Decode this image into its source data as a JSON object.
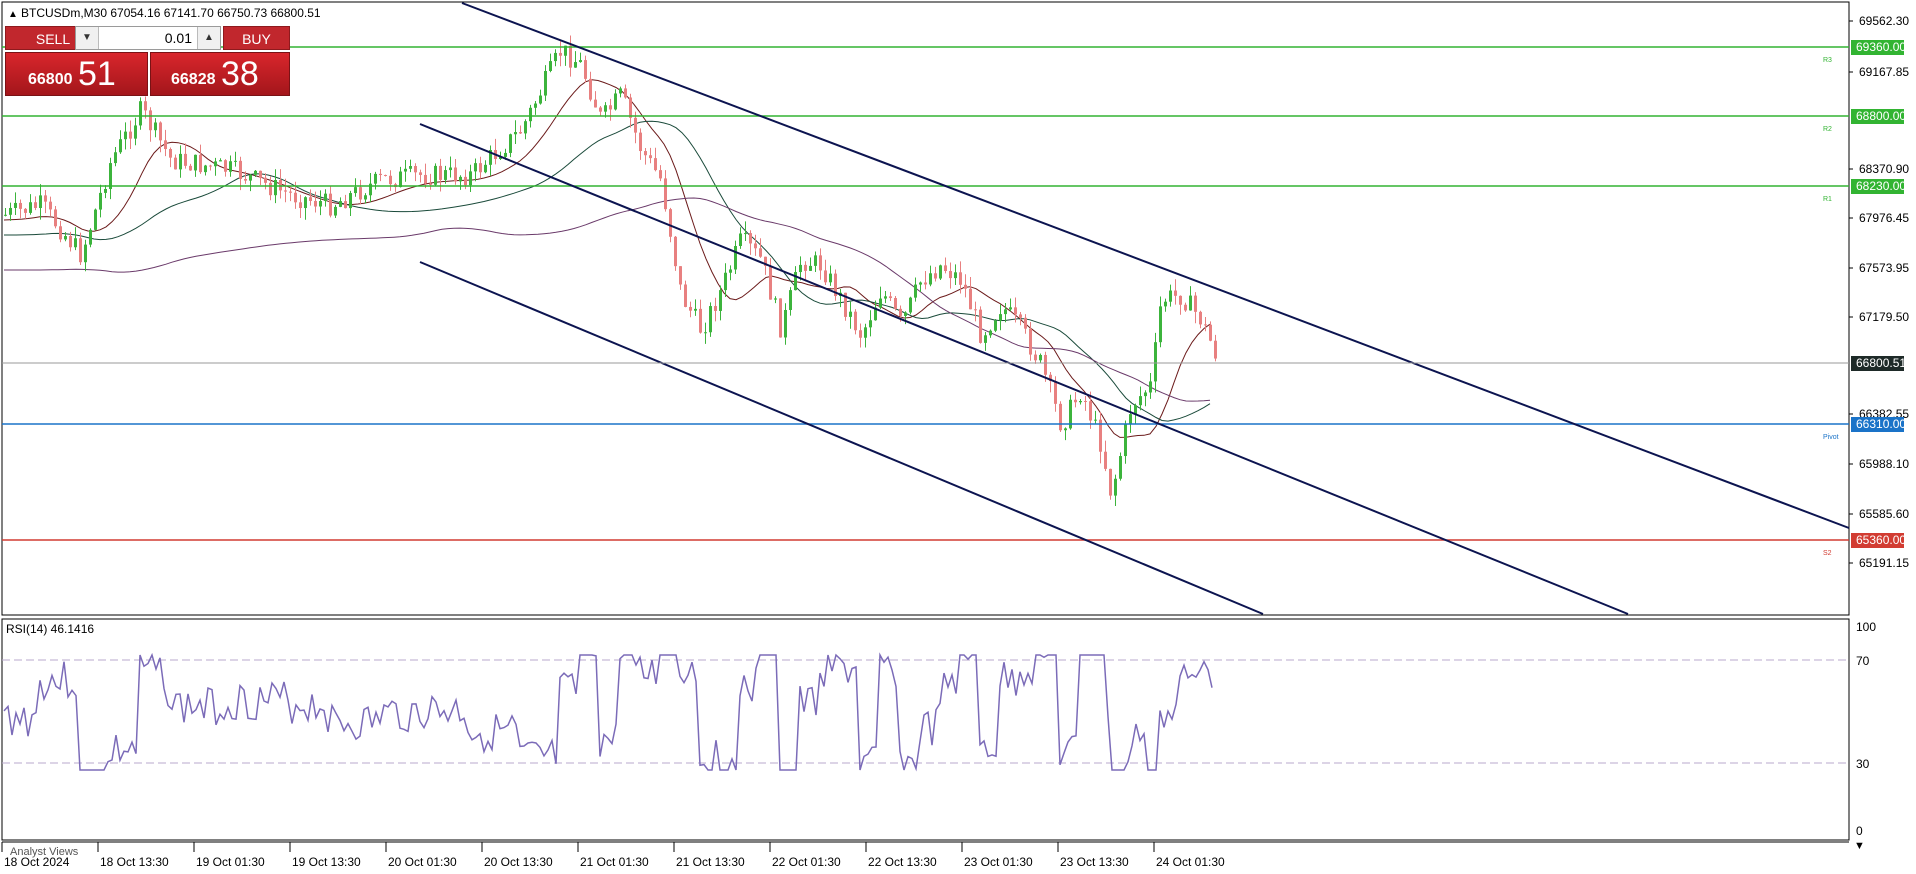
{
  "header": {
    "symbol_line": "BTCUSDm,M30  67054.16 67141.70 66750.73 66800.51"
  },
  "trade_panel": {
    "sell_label": "SELL",
    "buy_label": "BUY",
    "lot_value": "0.01",
    "sell_price_small": "66800",
    "sell_price_big": "51",
    "buy_price_small": "66828",
    "buy_price_big": "38"
  },
  "price_axis": {
    "ticks": [
      "69562.30",
      "69167.85",
      "68370.90",
      "67976.45",
      "67573.95",
      "67179.50",
      "66382.55",
      "65988.10",
      "65585.60",
      "65191.15"
    ]
  },
  "levels": [
    {
      "label": "69360.00",
      "tag": "R3",
      "color": "#32b432"
    },
    {
      "label": "68800.00",
      "tag": "R2",
      "color": "#32b432"
    },
    {
      "label": "68230.00",
      "tag": "R1",
      "color": "#32b432"
    },
    {
      "label": "66310.00",
      "tag": "Pivot",
      "color": "#1a73c8"
    },
    {
      "label": "65360.00",
      "tag": "S2",
      "color": "#d23c32"
    }
  ],
  "current_price": "66800.51",
  "rsi": {
    "label": "RSI(14) 46.1416",
    "ticks": [
      "100",
      "70",
      "30",
      "0"
    ]
  },
  "time_axis": {
    "labels": [
      "18 Oct 2024",
      "18 Oct 13:30",
      "19 Oct 01:30",
      "19 Oct 13:30",
      "20 Oct 01:30",
      "20 Oct 13:30",
      "21 Oct 01:30",
      "21 Oct 13:30",
      "22 Oct 01:30",
      "22 Oct 13:30",
      "23 Oct 01:30",
      "23 Oct 13:30",
      "24 Oct 01:30"
    ]
  },
  "footer": {
    "tab_label": "Analyst Views"
  },
  "colors": {
    "bull": "#3cb43c",
    "bear": "#e88080",
    "channel": "#0c1450",
    "ma_fast": "#6b1a1a",
    "ma_mid": "#1a4a3a",
    "ma_slow": "#6a3a6a",
    "rsi_line": "#7b6bb8"
  }
}
